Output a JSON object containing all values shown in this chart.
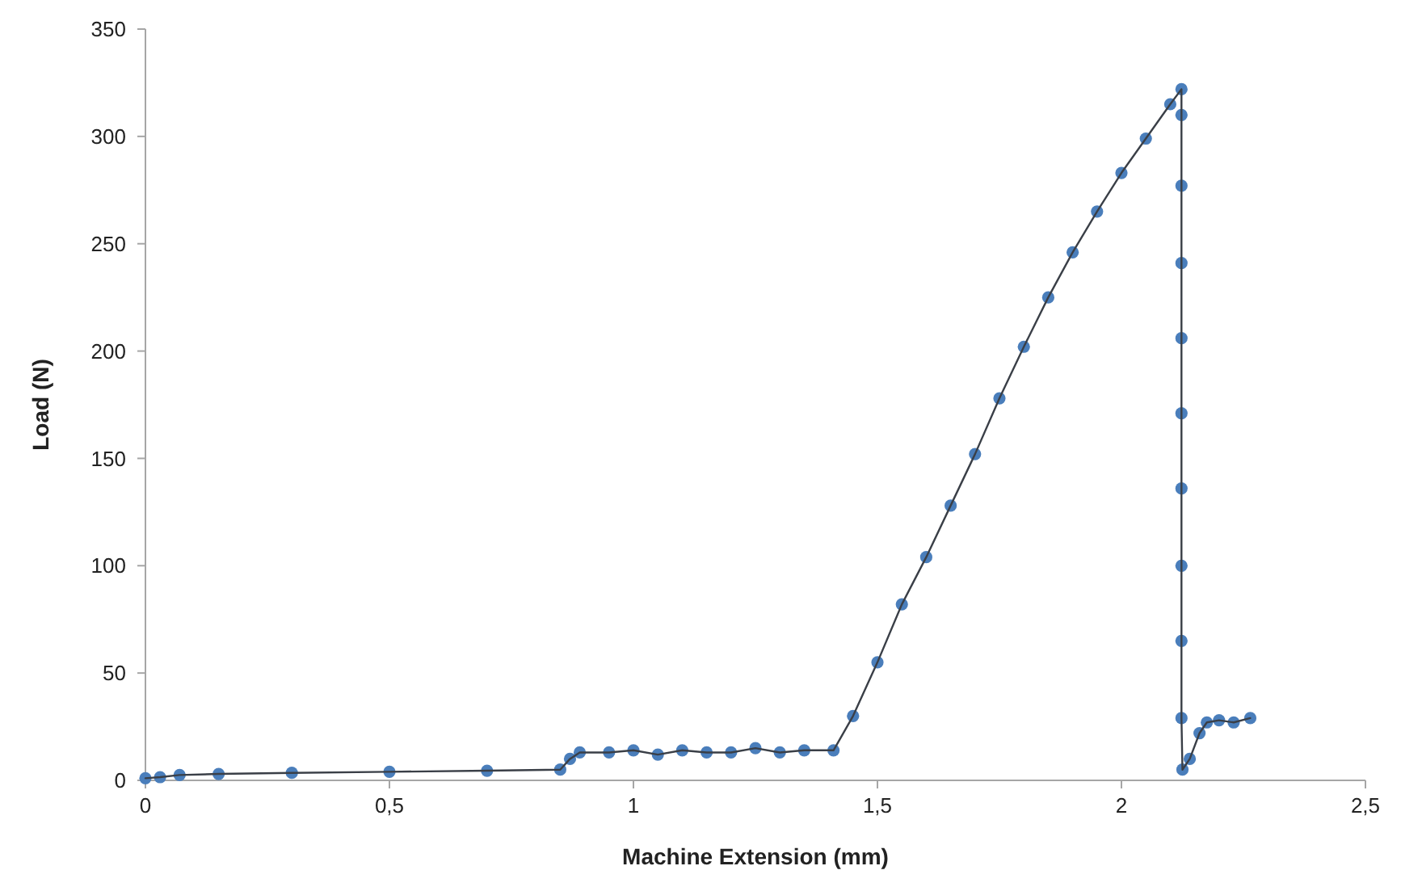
{
  "chart_data": {
    "type": "line",
    "xlabel": "Machine Extension (mm)",
    "ylabel": "Load (N)",
    "xlim": [
      0,
      2.5
    ],
    "xticks": [
      0,
      {
        "value": 0.5,
        "label": "0,5"
      },
      1,
      {
        "value": 1.5,
        "label": "1,5"
      },
      2,
      {
        "value": 2.5,
        "label": "2,5"
      }
    ],
    "ylim": [
      0,
      350
    ],
    "yticks": [
      0,
      50,
      100,
      150,
      200,
      250,
      300,
      350
    ],
    "marker": "circle",
    "line_style": "solid",
    "series": [
      {
        "color": "#4a7ebb",
        "x": [
          0,
          0.03,
          0.07,
          0.15,
          0.3,
          0.5,
          0.7,
          0.85,
          0.87,
          0.89,
          0.95,
          1.0,
          1.05,
          1.1,
          1.15,
          1.2,
          1.25,
          1.3,
          1.35,
          1.41,
          1.45,
          1.5,
          1.55,
          1.6,
          1.65,
          1.7,
          1.75,
          1.8,
          1.85,
          1.9,
          1.95,
          2.0,
          2.05,
          2.1,
          2.123,
          2.123,
          2.123,
          2.123,
          2.123,
          2.123,
          2.123,
          2.123,
          2.123,
          2.123,
          2.125,
          2.14,
          2.16,
          2.175,
          2.2,
          2.23,
          2.264
        ],
        "values": [
          1,
          1.5,
          2.5,
          3,
          3.5,
          4,
          4.5,
          5,
          10,
          13,
          13,
          14,
          12,
          14,
          13,
          13,
          15,
          13,
          14,
          14,
          30,
          55,
          82,
          104,
          128,
          152,
          178,
          202,
          225,
          246,
          265,
          283,
          299,
          315,
          322,
          310,
          277,
          241,
          206,
          171,
          136,
          100,
          65,
          29,
          5,
          10,
          22,
          27,
          28,
          27,
          29
        ]
      }
    ]
  }
}
